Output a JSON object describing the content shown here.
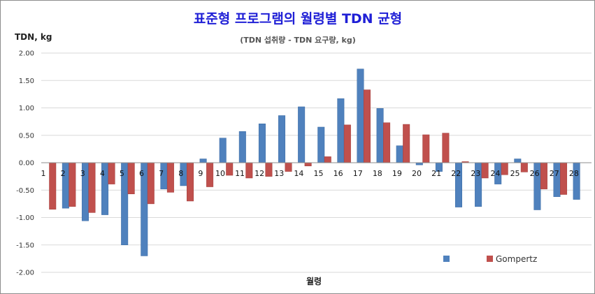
{
  "chart_data": {
    "type": "bar",
    "title": "표준형 프로그램의 월령별 TDN 균형",
    "subtitle": "(TDN 섭취량 - TDN 요구량, kg)",
    "ylabel": "TDN, kg",
    "xlabel": "월령",
    "ylim": [
      -2.0,
      2.0
    ],
    "yticks": [
      "2.00",
      "1.50",
      "1.00",
      "0.50",
      "0.00",
      "-0.50",
      "-1.00",
      "-1.50",
      "-2.00"
    ],
    "ytick_values": [
      2.0,
      1.5,
      1.0,
      0.5,
      0.0,
      -0.5,
      -1.0,
      -1.5,
      -2.0
    ],
    "categories": [
      "1",
      "2",
      "3",
      "4",
      "5",
      "6",
      "7",
      "8",
      "9",
      "10",
      "11",
      "12",
      "13",
      "14",
      "15",
      "16",
      "17",
      "18",
      "19",
      "20",
      "21",
      "22",
      "23",
      "24",
      "25",
      "26",
      "27",
      "28"
    ],
    "grid": true,
    "legend_position": "bottom-right",
    "series": [
      {
        "name": "",
        "color": "#4f81bd",
        "values": [
          0.0,
          -0.83,
          -1.06,
          -0.95,
          -1.5,
          -1.7,
          -0.48,
          -0.42,
          0.07,
          0.45,
          0.57,
          0.71,
          0.86,
          1.02,
          0.65,
          1.17,
          1.71,
          0.99,
          0.31,
          -0.04,
          -0.16,
          -0.81,
          -0.8,
          -0.39,
          0.07,
          -0.86,
          -0.62,
          -0.67
        ]
      },
      {
        "name": "Gompertz",
        "color": "#c0504d",
        "values": [
          -0.85,
          -0.8,
          -0.91,
          -0.39,
          -0.57,
          -0.75,
          -0.54,
          -0.7,
          -0.44,
          -0.23,
          -0.28,
          -0.25,
          -0.16,
          -0.06,
          0.11,
          0.69,
          1.33,
          0.73,
          0.7,
          0.51,
          0.54,
          0.02,
          -0.28,
          -0.22,
          -0.17,
          -0.48,
          -0.58,
          0.0
        ]
      }
    ]
  }
}
